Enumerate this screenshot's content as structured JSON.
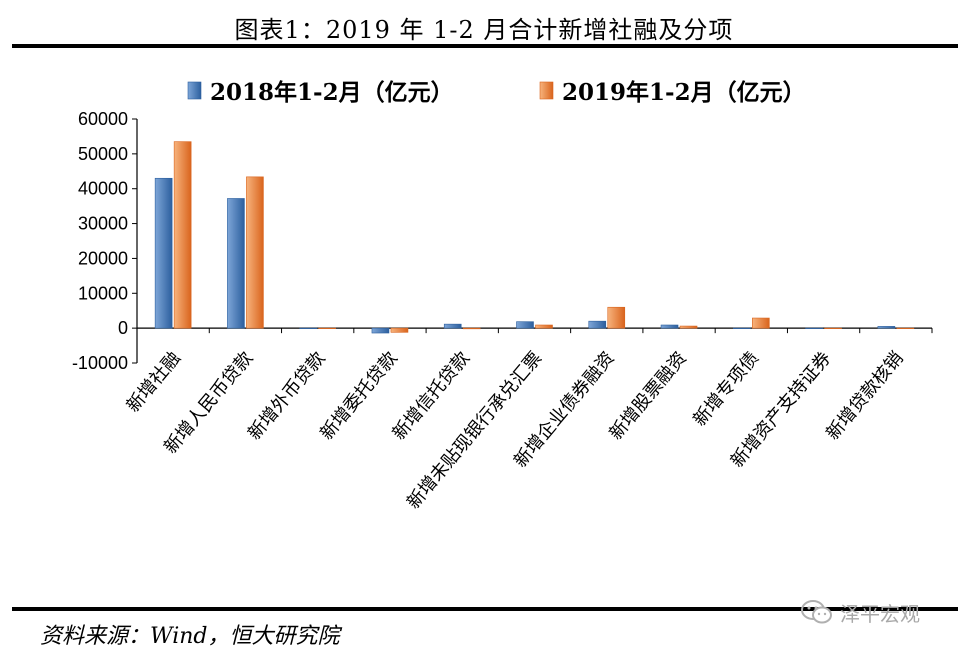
{
  "title": "图表1：2019 年 1-2 月合计新增社融及分项",
  "source": "资料来源：Wind，恒大研究院",
  "watermark": {
    "text": "泽平宏观",
    "icon": "wechat-icon"
  },
  "colors": {
    "series1_light": "#7ea6d8",
    "series1_dark": "#2c5f9e",
    "series2_light": "#f7b37d",
    "series2_dark": "#d9641d"
  },
  "chart_data": {
    "type": "bar",
    "categories": [
      "新增社融",
      "新增人民币贷款",
      "新增外币贷款",
      "新增委托贷款",
      "新增信托贷款",
      "新增未贴现银行承兑汇票",
      "新增企业债券融资",
      "新增股票融资",
      "新增专项债",
      "新增资产支持证券",
      "新增贷款核销"
    ],
    "series": [
      {
        "name": "2018年1-2月（亿元）",
        "values": [
          43000,
          37200,
          -100,
          -1400,
          1150,
          1850,
          2000,
          900,
          0,
          -50,
          500
        ]
      },
      {
        "name": "2019年1-2月（亿元）",
        "values": [
          53500,
          43400,
          0,
          -1200,
          -200,
          900,
          6000,
          600,
          2900,
          0,
          -100
        ]
      }
    ],
    "ylim": [
      -10000,
      60000
    ],
    "yticks": [
      60000,
      50000,
      40000,
      30000,
      20000,
      10000,
      0,
      -10000
    ],
    "xlabel": "",
    "ylabel": "",
    "legend_position": "top",
    "grid": false
  }
}
